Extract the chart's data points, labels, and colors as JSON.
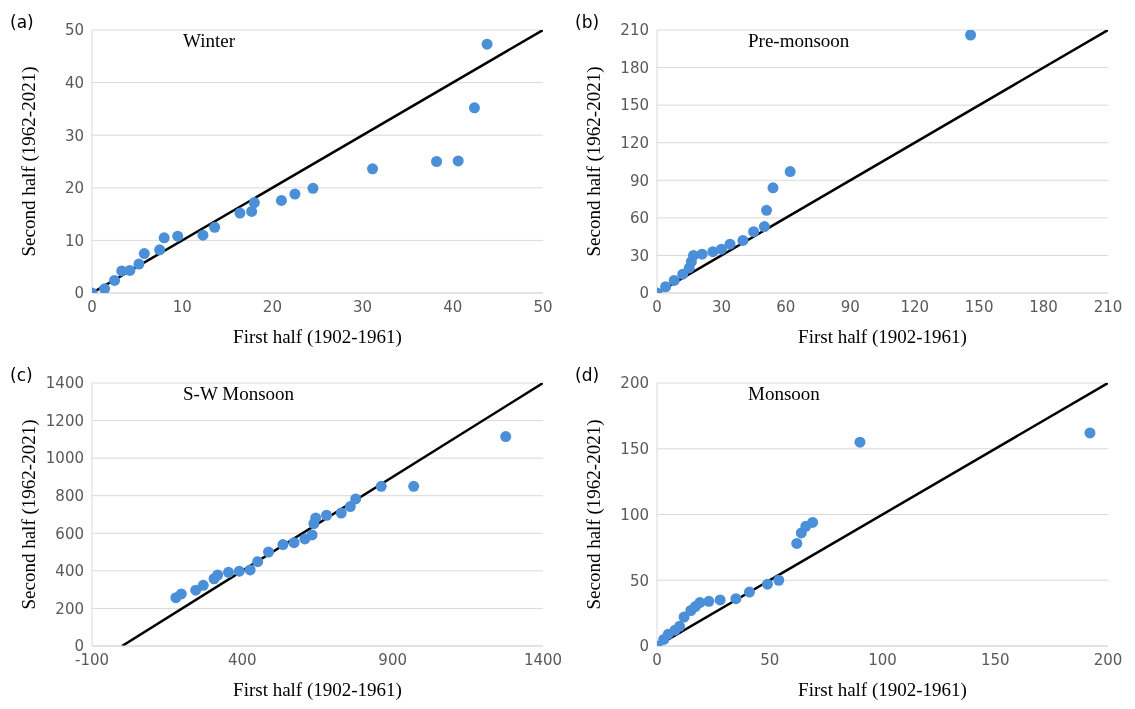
{
  "chart_data": [
    {
      "type": "scatter",
      "title": "(a)",
      "xlabel": "First half (1902-1961)",
      "ylabel": "Second half (1962-2021)",
      "annotations": [
        "Winter"
      ],
      "xlim": [
        0,
        50
      ],
      "ylim": [
        0,
        50
      ],
      "xticks": [
        0,
        10,
        20,
        30,
        40,
        50
      ],
      "yticks": [
        0,
        10,
        20,
        30,
        40,
        50
      ],
      "grid": "y",
      "marker": "circle",
      "series": [
        {
          "type": "scatter",
          "color": "#4a8fd8",
          "x": [
            0,
            1.4,
            2.5,
            3.3,
            4.2,
            5.2,
            5.8,
            7.5,
            8,
            9.5,
            12.3,
            13.6,
            16.4,
            17.7,
            18,
            21,
            22.5,
            24.5,
            31.1,
            38.2,
            40.6,
            42.4,
            43.8
          ],
          "values": [
            0,
            0.8,
            2.4,
            4.2,
            4.3,
            5.5,
            7.5,
            8.2,
            10.5,
            10.8,
            11,
            12.5,
            15.2,
            15.5,
            17.2,
            17.6,
            18.8,
            19.9,
            23.6,
            25,
            25.1,
            35.2,
            47.3
          ]
        },
        {
          "type": "line",
          "marker": "none",
          "color": "#000000",
          "x": [
            0,
            50
          ],
          "values": [
            0,
            50
          ]
        }
      ]
    },
    {
      "type": "scatter",
      "title": "(b)",
      "xlabel": "First half (1902-1961)",
      "ylabel": "Second half (1962-2021)",
      "annotations": [
        "Pre-monsoon"
      ],
      "xlim": [
        0,
        210
      ],
      "ylim": [
        0,
        210
      ],
      "xticks": [
        0,
        30,
        60,
        90,
        120,
        150,
        180,
        210
      ],
      "yticks": [
        0,
        30,
        60,
        90,
        120,
        150,
        180,
        210
      ],
      "grid": "y",
      "marker": "circle",
      "series": [
        {
          "type": "scatter",
          "color": "#4a8fd8",
          "x": [
            0,
            4,
            8,
            12,
            15,
            16,
            17,
            21,
            26,
            30,
            34,
            40,
            45,
            50,
            51,
            54,
            62,
            146
          ],
          "values": [
            0,
            5,
            10,
            15,
            20,
            25,
            30,
            31,
            33,
            35,
            39,
            42,
            49,
            53,
            66,
            84,
            97,
            206
          ]
        },
        {
          "type": "line",
          "marker": "none",
          "color": "#000000",
          "x": [
            0,
            210
          ],
          "values": [
            0,
            210
          ]
        }
      ]
    },
    {
      "type": "scatter",
      "title": "(c)",
      "xlabel": "First half (1902-1961)",
      "ylabel": "Second half (1962-2021)",
      "annotations": [
        "S-W Monsoon"
      ],
      "xlim": [
        -100,
        1400
      ],
      "ylim": [
        0,
        1400
      ],
      "xticks": [
        -100,
        400,
        900,
        1400
      ],
      "yticks": [
        0,
        200,
        400,
        600,
        800,
        1000,
        1200,
        1400
      ],
      "grid": "y",
      "marker": "circle",
      "series": [
        {
          "type": "scatter",
          "color": "#4a8fd8",
          "x": [
            179,
            197,
            245,
            270,
            306,
            318,
            354,
            390,
            426,
            451,
            487,
            535,
            572,
            608,
            632,
            638,
            644,
            680,
            729,
            759,
            777,
            862,
            970,
            1276
          ],
          "values": [
            257,
            277,
            297,
            323,
            358,
            378,
            392,
            398,
            405,
            449,
            500,
            540,
            550,
            570,
            591,
            651,
            682,
            696,
            708,
            742,
            783,
            850,
            850,
            1115
          ]
        },
        {
          "type": "line",
          "marker": "none",
          "color": "#000000",
          "x": [
            0,
            1400
          ],
          "values": [
            0,
            1400
          ]
        }
      ]
    },
    {
      "type": "scatter",
      "title": "(d)",
      "xlabel": "First half (1902-1961)",
      "ylabel": "Second half (1962-2021)",
      "annotations": [
        "Monsoon"
      ],
      "xlim": [
        0,
        200
      ],
      "ylim": [
        0,
        200
      ],
      "xticks": [
        0,
        50,
        100,
        150,
        200
      ],
      "yticks": [
        0,
        50,
        100,
        150,
        200
      ],
      "grid": "y",
      "marker": "circle",
      "series": [
        {
          "type": "scatter",
          "color": "#4a8fd8",
          "x": [
            0,
            3,
            5,
            8,
            10,
            12,
            15,
            17,
            19,
            23,
            28,
            35,
            41,
            49,
            54,
            62,
            64,
            66,
            69,
            90,
            192
          ],
          "values": [
            0,
            5,
            9,
            12,
            15,
            22,
            27,
            30,
            33,
            34,
            35,
            36,
            41,
            47,
            50,
            78,
            86,
            91,
            94,
            155,
            162
          ]
        },
        {
          "type": "line",
          "marker": "none",
          "color": "#000000",
          "x": [
            0,
            200
          ],
          "values": [
            0,
            200
          ]
        }
      ]
    }
  ]
}
